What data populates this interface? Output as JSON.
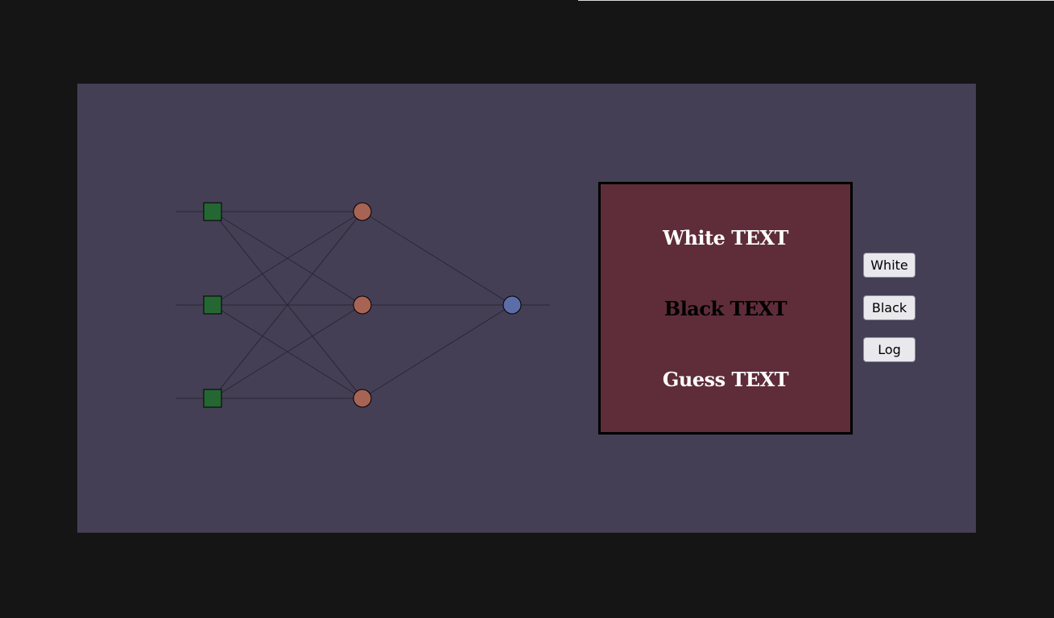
{
  "colors": {
    "page_background": "#151515",
    "panel_background": "#443f55",
    "input_node": "#246732",
    "hidden_node": "#a76353",
    "output_node": "#5b6ea8",
    "edge": "#2a2733",
    "color_box_background": "#5e2d39"
  },
  "network": {
    "layers": {
      "input": {
        "count": 3,
        "shape": "square"
      },
      "hidden": {
        "count": 3,
        "shape": "circle"
      },
      "output": {
        "count": 1,
        "shape": "circle"
      }
    },
    "connectivity": "fully-connected"
  },
  "color_box": {
    "white_text": "White TEXT",
    "black_text": "Black TEXT",
    "guess_text": "Guess TEXT"
  },
  "buttons": {
    "white_label": "White",
    "black_label": "Black",
    "log_label": "Log"
  }
}
